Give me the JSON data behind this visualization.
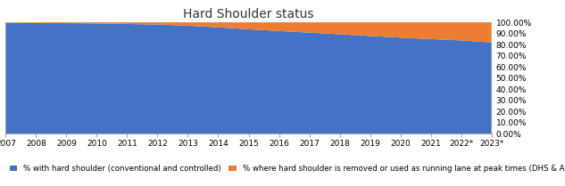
{
  "title": "Hard Shoulder status",
  "years": [
    "2007",
    "2008",
    "2009",
    "2010",
    "2011",
    "2012",
    "2013",
    "2014",
    "2015",
    "2016",
    "2017",
    "2018",
    "2019",
    "2020",
    "2021",
    "2022*",
    "2023*"
  ],
  "blue_values": [
    99.5,
    99.3,
    99.2,
    99.0,
    98.5,
    98.0,
    97.0,
    95.5,
    93.8,
    92.2,
    90.8,
    89.3,
    87.8,
    86.3,
    85.0,
    83.8,
    82.0
  ],
  "orange_values": [
    0.5,
    0.7,
    0.8,
    1.0,
    1.5,
    2.0,
    3.0,
    4.5,
    6.2,
    7.8,
    9.2,
    10.7,
    12.2,
    13.7,
    15.0,
    16.2,
    18.0
  ],
  "blue_color": "#4472C4",
  "orange_color": "#ED7D31",
  "legend_blue": "% with hard shoulder (conventional and controlled)",
  "legend_orange": "% where hard shoulder is removed or used as running lane at peak times (DHS & ALR)",
  "ytick_labels": [
    "0.00%",
    "10.00%",
    "20.00%",
    "30.00%",
    "40.00%",
    "50.00%",
    "60.00%",
    "70.00%",
    "80.00%",
    "90.00%",
    "100.00%"
  ],
  "ytick_values": [
    0,
    10,
    20,
    30,
    40,
    50,
    60,
    70,
    80,
    90,
    100
  ],
  "background_color": "#ffffff",
  "title_fontsize": 10,
  "legend_fontsize": 6.2,
  "tick_fontsize": 6.5
}
